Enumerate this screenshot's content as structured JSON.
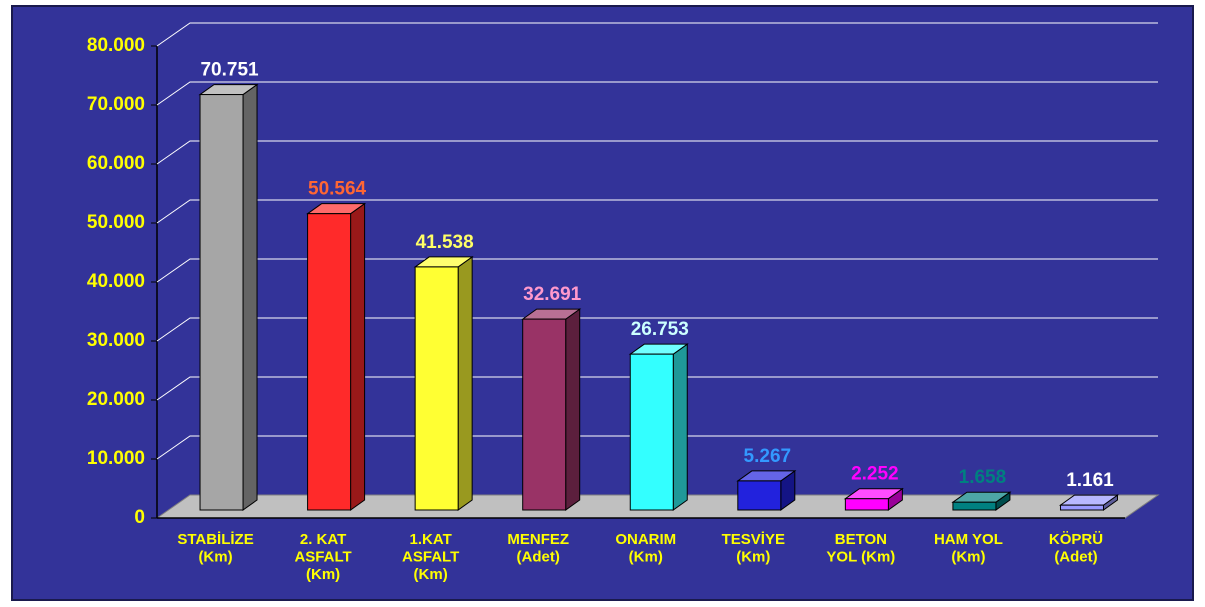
{
  "chart_data": {
    "type": "bar3d",
    "categories": [
      [
        "STABİLİZE",
        "(Km)"
      ],
      [
        "2. KAT",
        "ASFALT",
        "(Km)"
      ],
      [
        "1.KAT",
        "ASFALT",
        "(Km)"
      ],
      [
        "MENFEZ",
        "(Adet)"
      ],
      [
        "ONARIM",
        "(Km)"
      ],
      [
        "TESVİYE",
        "(Km)"
      ],
      [
        "BETON",
        "YOL (Km)"
      ],
      [
        "HAM YOL",
        "(Km)"
      ],
      [
        "KÖPRÜ",
        "(Adet)"
      ]
    ],
    "values": [
      70751,
      50564,
      41538,
      32691,
      26753,
      5267,
      2252,
      1658,
      1161
    ],
    "value_labels": [
      "70.751",
      "50.564",
      "41.538",
      "32.691",
      "26.753",
      "5.267",
      "2.252",
      "1.658",
      "1.161"
    ],
    "colors": [
      "#a6a6a6",
      "#ff2a2a",
      "#ffff33",
      "#993366",
      "#33ffff",
      "#2222dd",
      "#ff00ff",
      "#008080",
      "#9999ff"
    ],
    "label_colors": [
      "#ffffff",
      "#ff6633",
      "#ffff66",
      "#ff99cc",
      "#ccffff",
      "#3399ff",
      "#ff00ff",
      "#008080",
      "#ffffff"
    ],
    "ylim": [
      0,
      80000
    ],
    "yticks": [
      0,
      {
        "value": 10000,
        "label": "10.000"
      },
      {
        "value": 20000,
        "label": "20.000"
      },
      {
        "value": 30000,
        "label": "30.000"
      },
      {
        "value": 40000,
        "label": "40.000"
      },
      {
        "value": 50000,
        "label": "50.000"
      },
      {
        "value": 60000,
        "label": "60.000"
      },
      {
        "value": 70000,
        "label": "70.000"
      },
      {
        "value": 80000,
        "label": "80.000"
      }
    ],
    "grid": true
  }
}
